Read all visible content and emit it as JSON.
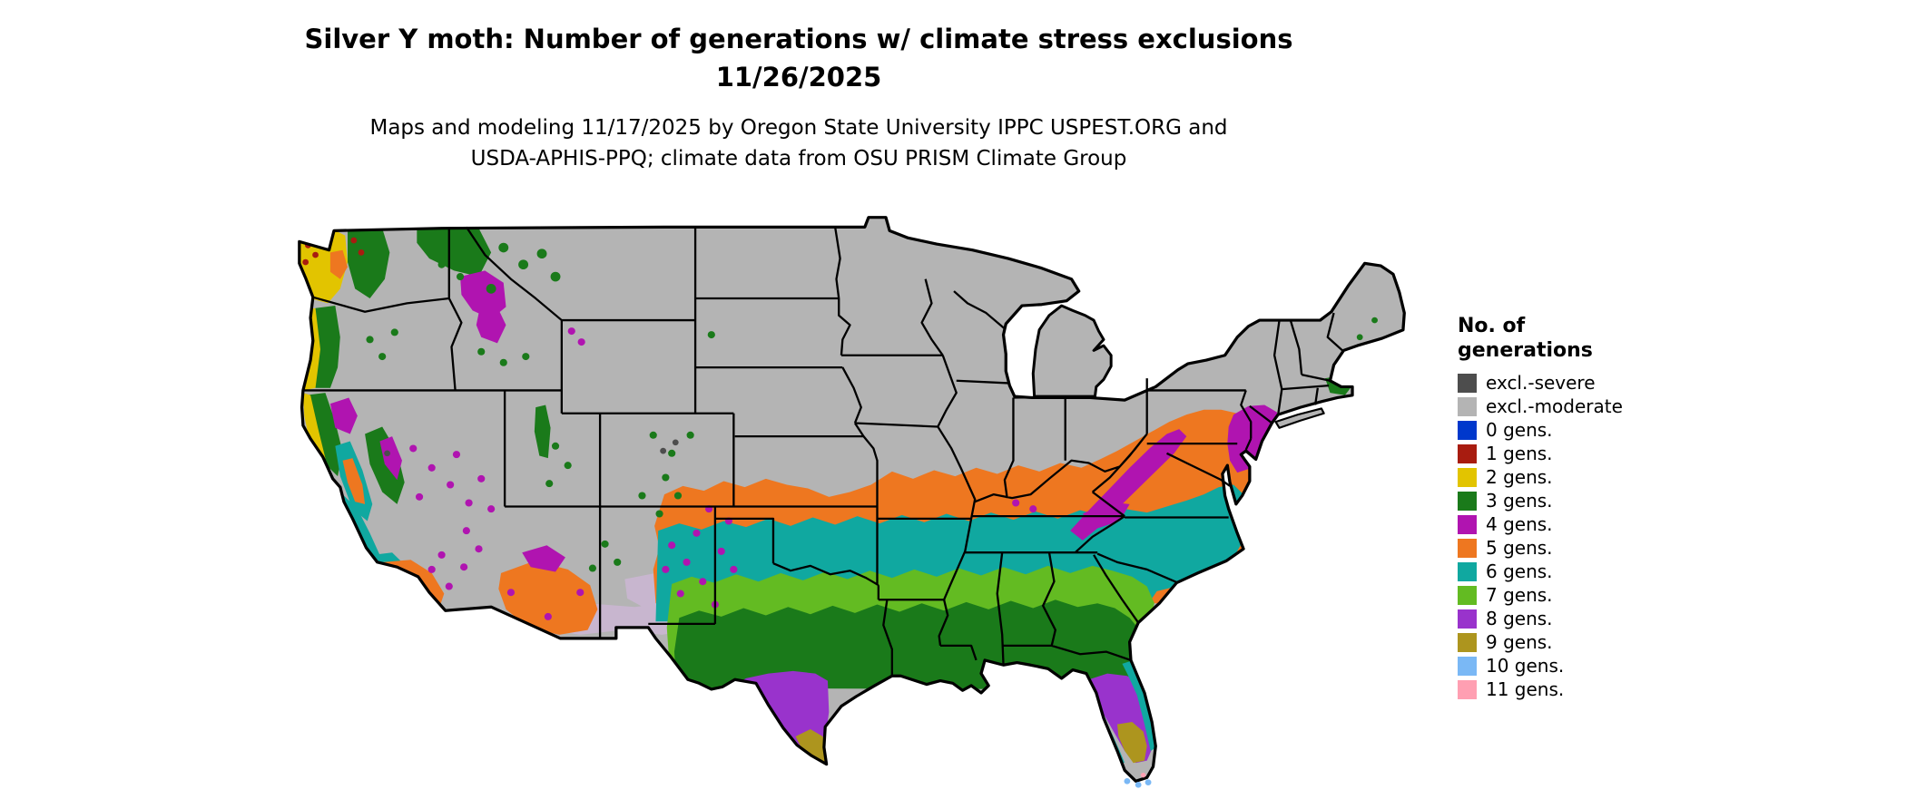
{
  "title": {
    "line1": "Silver Y moth: Number of generations w/ climate stress exclusions",
    "line2": "11/26/2025"
  },
  "subtitle": {
    "line1": "Maps and modeling 11/17/2025 by Oregon State University IPPC USPEST.ORG and",
    "line2": "USDA-APHIS-PPQ; climate data from OSU PRISM Climate Group"
  },
  "legend": {
    "title_line1": "No. of",
    "title_line2": "generations",
    "items": [
      {
        "key": "severe",
        "label": "excl.-severe",
        "color": "#4d4d4d"
      },
      {
        "key": "moderate",
        "label": "excl.-moderate",
        "color": "#b4b4b4"
      },
      {
        "key": "gens0",
        "label": "0 gens.",
        "color": "#0038cc"
      },
      {
        "key": "gens1",
        "label": "1 gens.",
        "color": "#a81c10"
      },
      {
        "key": "gens2",
        "label": "2 gens.",
        "color": "#e2c400"
      },
      {
        "key": "gens3",
        "label": "3 gens.",
        "color": "#1a7a1a"
      },
      {
        "key": "gens4",
        "label": "4 gens.",
        "color": "#b014b0"
      },
      {
        "key": "gens5",
        "label": "5 gens.",
        "color": "#ee7720"
      },
      {
        "key": "gens6",
        "label": "6 gens.",
        "color": "#10a8a0"
      },
      {
        "key": "gens7",
        "label": "7 gens.",
        "color": "#63bb22"
      },
      {
        "key": "gens8",
        "label": "8 gens.",
        "color": "#9933cc"
      },
      {
        "key": "gens9",
        "label": "9 gens.",
        "color": "#ad951e"
      },
      {
        "key": "gens10",
        "label": "10 gens.",
        "color": "#7ab8f5"
      },
      {
        "key": "gens11",
        "label": "11 gens.",
        "color": "#ff9fb2"
      }
    ]
  },
  "map": {
    "ocean_color": "#ffffff",
    "state_border_color": "#000000",
    "extra_colors": {
      "faded": "#c8b6cf"
    }
  }
}
